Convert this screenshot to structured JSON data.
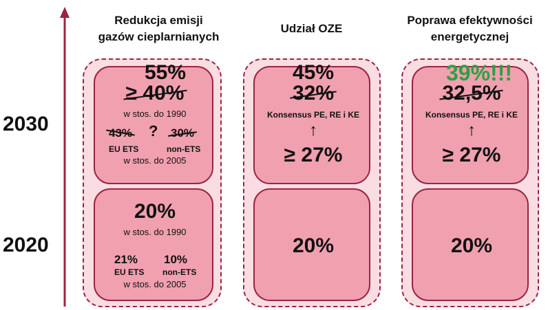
{
  "years": {
    "y2030": "2030",
    "y2020": "2020"
  },
  "columns": {
    "emissions": {
      "title1": "Redukcja emisji",
      "title2": "gazów cieplarnianych",
      "t2030": {
        "new_value": "55%",
        "old_value": "≥ 40%",
        "ref1": "w stos. do 1990",
        "left_old": "43%",
        "question": "?",
        "right_old": "30%",
        "left_label": "EU ETS",
        "right_label": "non-ETS",
        "ref2": "w stos. do 2005"
      },
      "t2020": {
        "value": "20%",
        "ref1": "w stos. do 1990",
        "left_value": "21%",
        "right_value": "10%",
        "left_label": "EU ETS",
        "right_label": "non-ETS",
        "ref2": "w stos. do 2005"
      }
    },
    "oze": {
      "title": "Udział OZE",
      "t2030": {
        "new_value": "45%",
        "old_value": "32%",
        "consensus": "Konsensus PE, RE i KE",
        "arrow": "↑",
        "base_value": "≥ 27%"
      },
      "t2020": {
        "value": "20%"
      }
    },
    "efficiency": {
      "title1": "Poprawa efektywności",
      "title2": "energetycznej",
      "t2030": {
        "new_value": "39%!!!",
        "old_value": "32,5%",
        "consensus": "Konsensus PE, RE i KE",
        "arrow": "↑",
        "base_value": "≥ 27%"
      },
      "t2020": {
        "value": "20%"
      }
    }
  },
  "colors": {
    "accent": "#9b2341",
    "box_fill": "#f1a0b0",
    "outer_fill": "#f9dde3",
    "highlight_green": "#2ea043"
  }
}
